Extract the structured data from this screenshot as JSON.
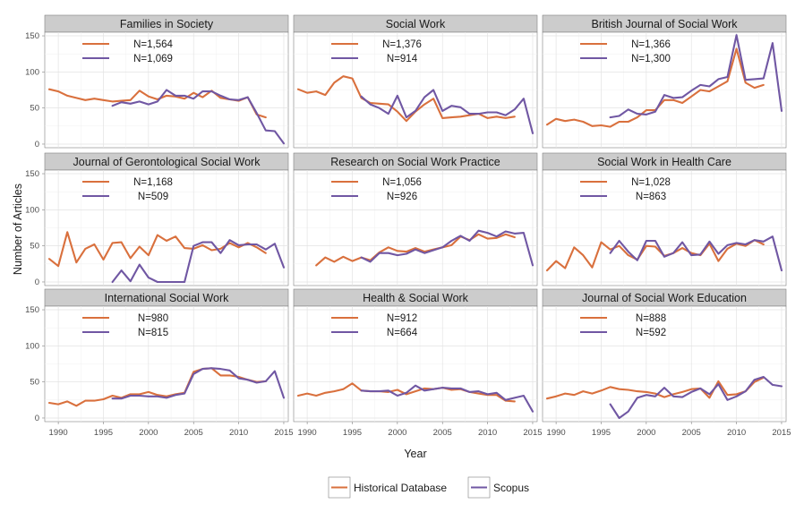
{
  "chart_data": {
    "type": "line",
    "xlabel": "Year",
    "ylabel": "Number of Articles",
    "xlim": [
      1988.5,
      2015.5
    ],
    "ylim": [
      -5,
      155
    ],
    "x_ticks": [
      1990,
      1995,
      2000,
      2005,
      2010,
      2015
    ],
    "y_ticks": [
      0,
      50,
      100,
      150
    ],
    "grid": true,
    "legend_position": "bottom",
    "legend": [
      {
        "name": "Historical Database",
        "color": "#D9703D"
      },
      {
        "name": "Scopus",
        "color": "#7057A3"
      }
    ],
    "panels": [
      {
        "title": "Families in Society",
        "counts": [
          "N=1,564",
          "N=1,069"
        ],
        "series": [
          {
            "name": "Historical Database",
            "x": [
              1989,
              1990,
              1991,
              1992,
              1993,
              1994,
              1995,
              1996,
              1997,
              1998,
              1999,
              2000,
              2001,
              2002,
              2003,
              2004,
              2005,
              2006,
              2007,
              2008,
              2009,
              2010,
              2011,
              2012,
              2013
            ],
            "values": [
              76,
              73,
              67,
              64,
              61,
              63,
              61,
              59,
              60,
              61,
              74,
              66,
              62,
              67,
              66,
              63,
              71,
              65,
              74,
              64,
              62,
              60,
              65,
              41,
              37
            ]
          },
          {
            "name": "Scopus",
            "x": [
              1996,
              1997,
              1998,
              1999,
              2000,
              2001,
              2002,
              2003,
              2004,
              2005,
              2006,
              2007,
              2008,
              2009,
              2010,
              2011,
              2012,
              2013,
              2014,
              2015
            ],
            "values": [
              53,
              58,
              56,
              59,
              55,
              59,
              75,
              67,
              67,
              63,
              73,
              73,
              67,
              62,
              61,
              65,
              43,
              19,
              18,
              1
            ]
          }
        ]
      },
      {
        "title": "Social Work",
        "counts": [
          "N=1,376",
          "N=914"
        ],
        "series": [
          {
            "name": "Historical Database",
            "x": [
              1989,
              1990,
              1991,
              1992,
              1993,
              1994,
              1995,
              1996,
              1997,
              1998,
              1999,
              2000,
              2001,
              2002,
              2003,
              2004,
              2005,
              2006,
              2007,
              2008,
              2009,
              2010,
              2011,
              2012,
              2013
            ],
            "values": [
              76,
              71,
              73,
              68,
              85,
              94,
              91,
              64,
              57,
              56,
              55,
              45,
              32,
              45,
              55,
              63,
              36,
              37,
              38,
              40,
              42,
              36,
              38,
              36,
              38
            ]
          },
          {
            "name": "Scopus",
            "x": [
              1996,
              1997,
              1998,
              1999,
              2000,
              2001,
              2002,
              2003,
              2004,
              2005,
              2006,
              2007,
              2008,
              2009,
              2010,
              2011,
              2012,
              2013,
              2014,
              2015
            ],
            "values": [
              66,
              55,
              50,
              42,
              67,
              37,
              46,
              65,
              75,
              46,
              53,
              51,
              42,
              42,
              44,
              44,
              40,
              48,
              63,
              15
            ]
          }
        ]
      },
      {
        "title": "British Journal of Social Work",
        "counts": [
          "N=1,366",
          "N=1,300"
        ],
        "series": [
          {
            "name": "Historical Database",
            "x": [
              1989,
              1990,
              1991,
              1992,
              1993,
              1994,
              1995,
              1996,
              1997,
              1998,
              1999,
              2000,
              2001,
              2002,
              2003,
              2004,
              2005,
              2006,
              2007,
              2008,
              2009,
              2010,
              2011,
              2012,
              2013
            ],
            "values": [
              27,
              35,
              32,
              34,
              31,
              25,
              26,
              24,
              31,
              31,
              37,
              47,
              47,
              61,
              61,
              57,
              66,
              75,
              73,
              80,
              87,
              132,
              85,
              78,
              82
            ]
          },
          {
            "name": "Scopus",
            "x": [
              1996,
              1997,
              1998,
              1999,
              2000,
              2001,
              2002,
              2003,
              2004,
              2005,
              2006,
              2007,
              2008,
              2009,
              2010,
              2011,
              2012,
              2013,
              2014,
              2015
            ],
            "values": [
              37,
              39,
              48,
              42,
              41,
              45,
              68,
              64,
              65,
              74,
              82,
              80,
              90,
              93,
              151,
              89,
              90,
              91,
              140,
              46
            ]
          }
        ]
      },
      {
        "title": "Journal of Gerontological Social Work",
        "counts": [
          "N=1,168",
          "N=509"
        ],
        "series": [
          {
            "name": "Historical Database",
            "x": [
              1989,
              1990,
              1991,
              1992,
              1993,
              1994,
              1995,
              1996,
              1997,
              1998,
              1999,
              2000,
              2001,
              2002,
              2003,
              2004,
              2005,
              2006,
              2007,
              2008,
              2009,
              2010,
              2011,
              2012,
              2013
            ],
            "values": [
              32,
              22,
              69,
              27,
              46,
              52,
              31,
              54,
              55,
              33,
              49,
              37,
              65,
              57,
              63,
              47,
              46,
              51,
              44,
              46,
              54,
              48,
              54,
              48,
              40
            ]
          },
          {
            "name": "Scopus",
            "x": [
              1996,
              1997,
              1998,
              1999,
              2000,
              2001,
              2002,
              2003,
              2004,
              2005,
              2006,
              2007,
              2008,
              2009,
              2010,
              2011,
              2012,
              2013,
              2014,
              2015
            ],
            "values": [
              0,
              16,
              1,
              24,
              6,
              0,
              0,
              0,
              0,
              50,
              55,
              55,
              40,
              58,
              51,
              52,
              52,
              45,
              53,
              20
            ]
          }
        ]
      },
      {
        "title": "Research on Social Work Practice",
        "counts": [
          "N=1,056",
          "N=926"
        ],
        "series": [
          {
            "name": "Historical Database",
            "x": [
              1991,
              1992,
              1993,
              1994,
              1995,
              1996,
              1997,
              1998,
              1999,
              2000,
              2001,
              2002,
              2003,
              2004,
              2005,
              2006,
              2007,
              2008,
              2009,
              2010,
              2011,
              2012,
              2013
            ],
            "values": [
              23,
              34,
              28,
              35,
              29,
              34,
              30,
              41,
              48,
              43,
              42,
              47,
              42,
              45,
              48,
              51,
              63,
              58,
              66,
              60,
              61,
              66,
              62
            ]
          },
          {
            "name": "Scopus",
            "x": [
              1996,
              1997,
              1998,
              1999,
              2000,
              2001,
              2002,
              2003,
              2004,
              2005,
              2006,
              2007,
              2008,
              2009,
              2010,
              2011,
              2012,
              2013,
              2014,
              2015
            ],
            "values": [
              34,
              28,
              40,
              40,
              37,
              39,
              45,
              40,
              44,
              48,
              57,
              64,
              57,
              71,
              68,
              63,
              70,
              67,
              68,
              23
            ]
          }
        ]
      },
      {
        "title": "Social Work in Health Care",
        "counts": [
          "N=1,028",
          "N=863"
        ],
        "series": [
          {
            "name": "Historical Database",
            "x": [
              1989,
              1990,
              1991,
              1992,
              1993,
              1994,
              1995,
              1996,
              1997,
              1998,
              1999,
              2000,
              2001,
              2002,
              2003,
              2004,
              2005,
              2006,
              2007,
              2008,
              2009,
              2010,
              2011,
              2012,
              2013
            ],
            "values": [
              16,
              29,
              19,
              48,
              37,
              20,
              55,
              45,
              50,
              37,
              31,
              50,
              49,
              36,
              40,
              47,
              40,
              37,
              53,
              29,
              46,
              53,
              50,
              58,
              52
            ]
          },
          {
            "name": "Scopus",
            "x": [
              1996,
              1997,
              1998,
              1999,
              2000,
              2001,
              2002,
              2003,
              2004,
              2005,
              2006,
              2007,
              2008,
              2009,
              2010,
              2011,
              2012,
              2013,
              2014,
              2015
            ],
            "values": [
              40,
              57,
              42,
              30,
              57,
              57,
              35,
              40,
              55,
              37,
              38,
              56,
              39,
              51,
              54,
              52,
              58,
              56,
              63,
              16
            ]
          }
        ]
      },
      {
        "title": "International Social Work",
        "counts": [
          "N=980",
          "N=815"
        ],
        "series": [
          {
            "name": "Historical Database",
            "x": [
              1989,
              1990,
              1991,
              1992,
              1993,
              1994,
              1995,
              1996,
              1997,
              1998,
              1999,
              2000,
              2001,
              2002,
              2003,
              2004,
              2005,
              2006,
              2007,
              2008,
              2009,
              2010,
              2011,
              2012,
              2013
            ],
            "values": [
              21,
              19,
              23,
              17,
              24,
              24,
              26,
              31,
              28,
              33,
              33,
              36,
              32,
              30,
              33,
              35,
              64,
              68,
              69,
              59,
              59,
              57,
              53,
              50,
              51
            ]
          },
          {
            "name": "Scopus",
            "x": [
              1996,
              1997,
              1998,
              1999,
              2000,
              2001,
              2002,
              2003,
              2004,
              2005,
              2006,
              2007,
              2008,
              2009,
              2010,
              2011,
              2012,
              2013,
              2014,
              2015
            ],
            "values": [
              27,
              27,
              31,
              31,
              30,
              30,
              28,
              32,
              34,
              61,
              68,
              69,
              68,
              66,
              55,
              53,
              49,
              51,
              65,
              28
            ]
          }
        ]
      },
      {
        "title": "Health & Social Work",
        "counts": [
          "N=912",
          "N=664"
        ],
        "series": [
          {
            "name": "Historical Database",
            "x": [
              1989,
              1990,
              1991,
              1992,
              1993,
              1994,
              1995,
              1996,
              1997,
              1998,
              1999,
              2000,
              2001,
              2002,
              2003,
              2004,
              2005,
              2006,
              2007,
              2008,
              2009,
              2010,
              2011,
              2012,
              2013
            ],
            "values": [
              31,
              34,
              31,
              35,
              37,
              40,
              48,
              38,
              37,
              37,
              36,
              39,
              33,
              37,
              41,
              40,
              42,
              39,
              40,
              36,
              34,
              32,
              32,
              24,
              23
            ]
          },
          {
            "name": "Scopus",
            "x": [
              1996,
              1997,
              1998,
              1999,
              2000,
              2001,
              2002,
              2003,
              2004,
              2005,
              2006,
              2007,
              2008,
              2009,
              2010,
              2011,
              2012,
              2013,
              2014,
              2015
            ],
            "values": [
              38,
              37,
              37,
              38,
              31,
              35,
              45,
              38,
              40,
              42,
              41,
              41,
              36,
              37,
              33,
              35,
              25,
              28,
              31,
              9
            ]
          }
        ]
      },
      {
        "title": "Journal of Social Work Education",
        "counts": [
          "N=888",
          "N=592"
        ],
        "series": [
          {
            "name": "Historical Database",
            "x": [
              1989,
              1990,
              1991,
              1992,
              1993,
              1994,
              1995,
              1996,
              1997,
              1998,
              1999,
              2000,
              2001,
              2002,
              2003,
              2004,
              2005,
              2006,
              2007,
              2008,
              2009,
              2010,
              2011,
              2012,
              2013
            ],
            "values": [
              27,
              30,
              34,
              32,
              37,
              34,
              38,
              43,
              40,
              39,
              37,
              36,
              34,
              29,
              33,
              36,
              40,
              41,
              28,
              51,
              32,
              33,
              37,
              50,
              56
            ]
          },
          {
            "name": "Scopus",
            "x": [
              1996,
              1997,
              1998,
              1999,
              2000,
              2001,
              2002,
              2003,
              2004,
              2005,
              2006,
              2007,
              2008,
              2009,
              2010,
              2011,
              2012,
              2013,
              2014,
              2015
            ],
            "values": [
              19,
              0,
              9,
              28,
              32,
              30,
              42,
              30,
              29,
              36,
              41,
              33,
              47,
              25,
              30,
              37,
              53,
              57,
              46,
              44
            ]
          }
        ]
      }
    ]
  }
}
